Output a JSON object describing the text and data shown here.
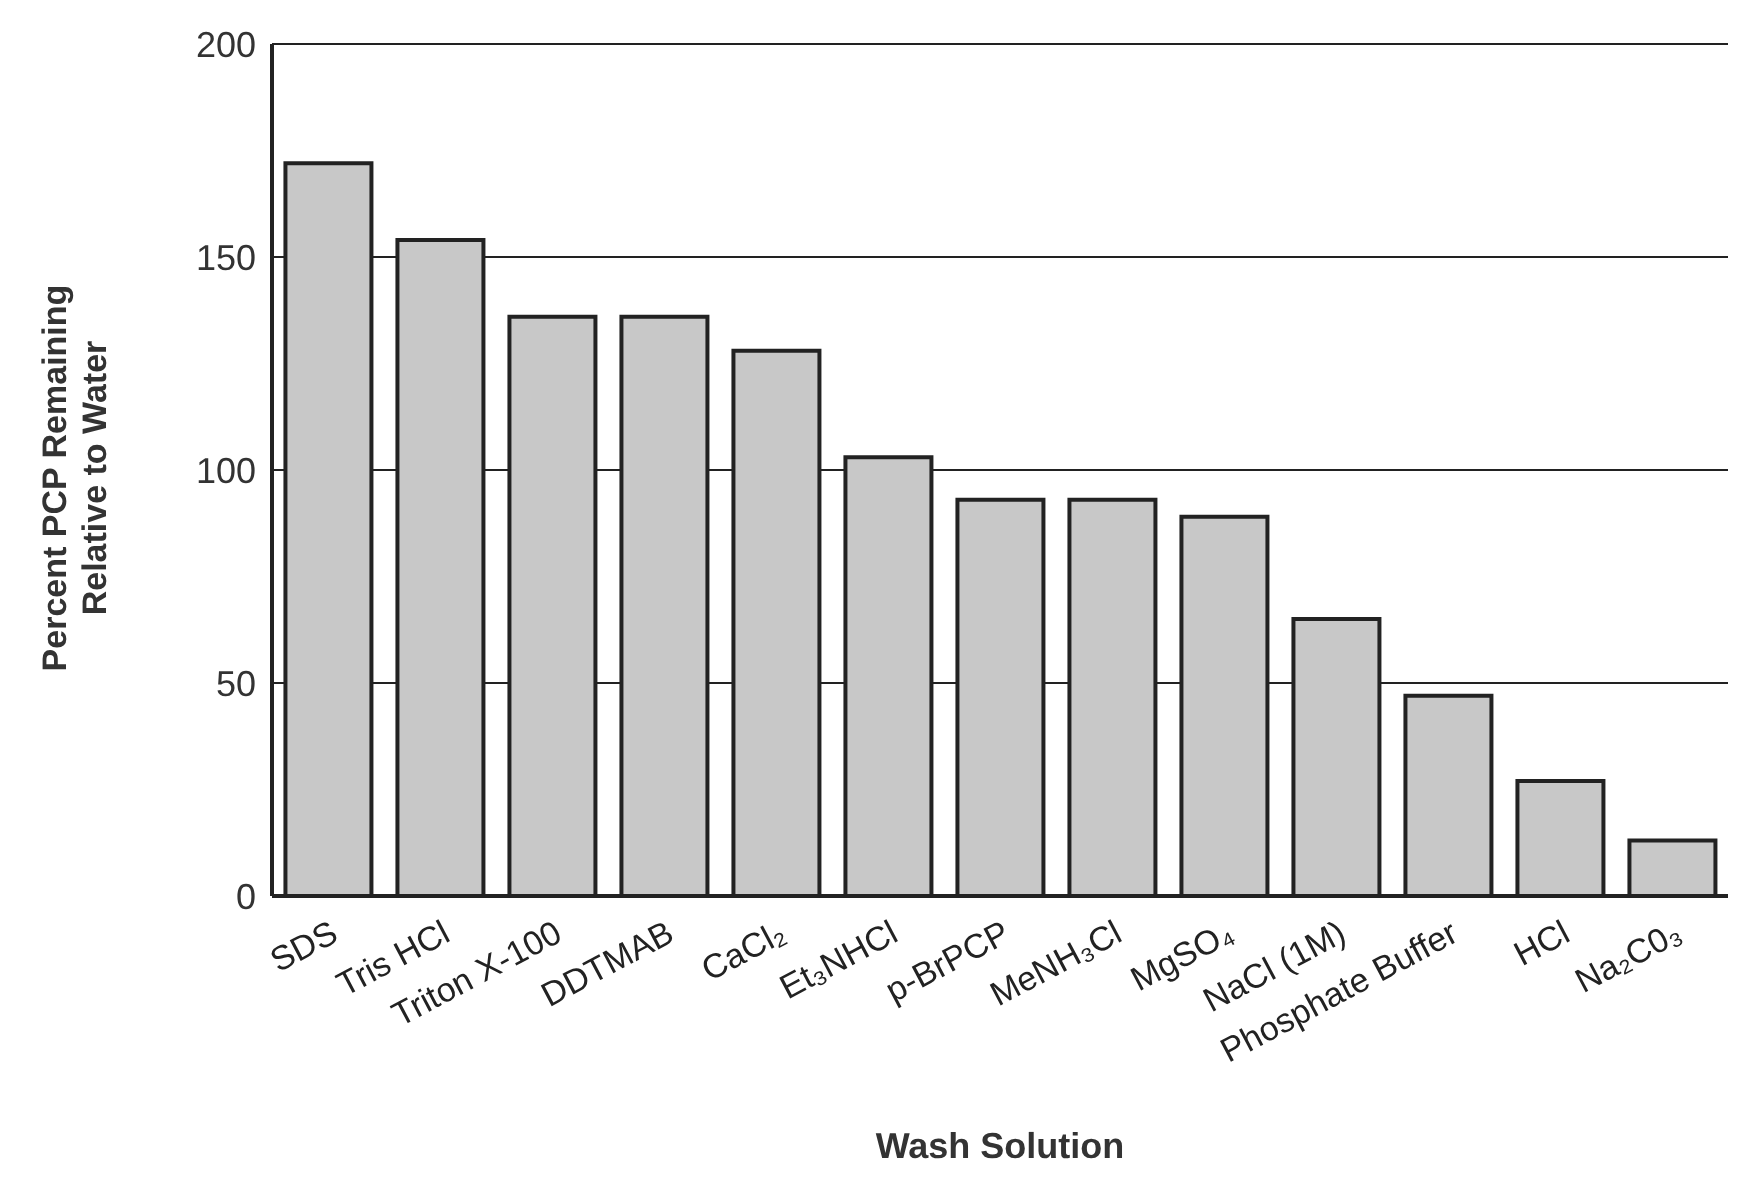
{
  "chart_data": {
    "type": "bar",
    "xlabel": "Wash Solution",
    "ylabel": "Percent PCP Remaining Relative to Water",
    "categories": [
      "SDS",
      "Tris HCl",
      "Triton X-100",
      "DDTMAB",
      "CaCl₂",
      "Et₃NHCl",
      "p-BrPCP",
      "MeNH₃Cl",
      "MgSO₄",
      "NaCl (1M)",
      "Phosphate Buffer",
      "HCl",
      "Na₂C0₃"
    ],
    "values": [
      172,
      154,
      136,
      136,
      128,
      103,
      93,
      93,
      89,
      65,
      47,
      27,
      13
    ],
    "color": "#c8c8c8",
    "ylim": [
      0,
      200
    ],
    "yticks": [
      0,
      50,
      100,
      150,
      200
    ],
    "grid": "y"
  }
}
